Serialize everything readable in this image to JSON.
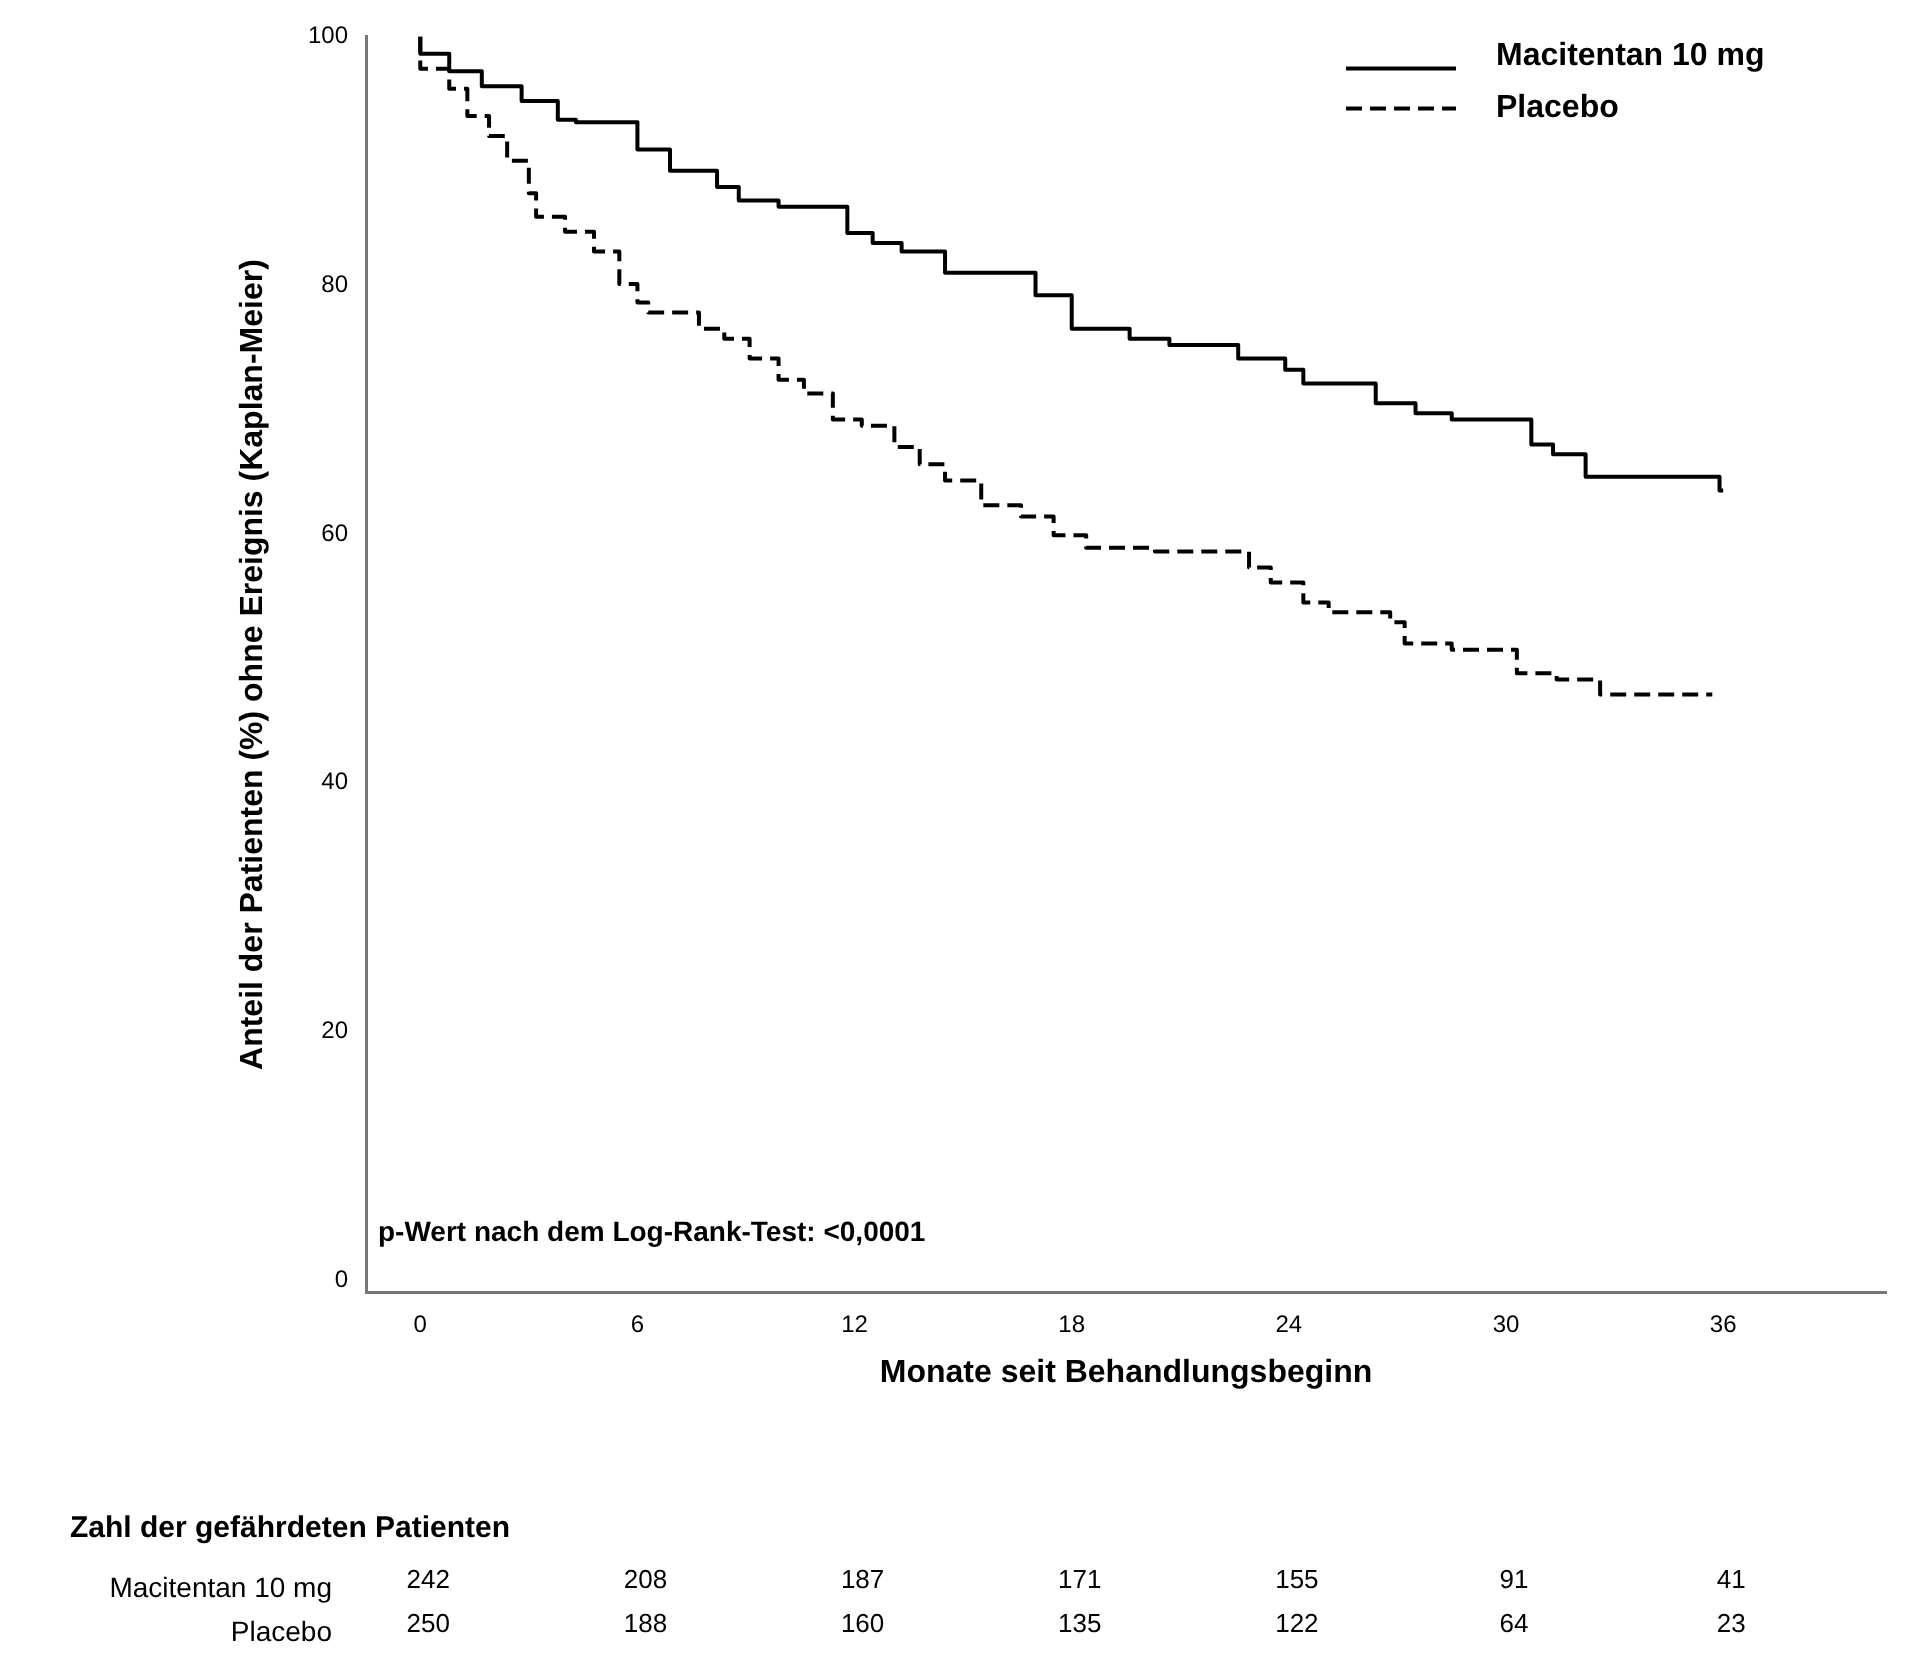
{
  "chart_data": {
    "type": "step",
    "ylabel": "Anteil der Patienten (%) ohne Ereignis (Kaplan-Meier)",
    "xlabel": "Monate seit Behandlungsbeginn",
    "xlim": [
      -1.5,
      40.5
    ],
    "xticks": [
      0,
      6,
      12,
      18,
      24,
      30,
      36
    ],
    "ylim": [
      -1,
      100
    ],
    "yticks": [
      0,
      20,
      40,
      60,
      80,
      100
    ],
    "grid": false,
    "legend": "top right",
    "series": [
      {
        "name": "Macitentan 10 mg",
        "color": "#000000",
        "line_style": "solid",
        "x": [
          0,
          0.8,
          1.7,
          2.8,
          3.8,
          4.3,
          6.0,
          6.9,
          8.2,
          8.8,
          9.9,
          11.8,
          12.5,
          13.3,
          14.5,
          17.0,
          18.0,
          19.6,
          20.7,
          22.6,
          23.9,
          24.4,
          26.4,
          27.5,
          28.5,
          30.7,
          31.3,
          32.2,
          33.1,
          35.9,
          36
        ],
        "values": [
          100,
          98.6,
          97.2,
          96,
          94.8,
          93.3,
          93.1,
          90.9,
          89.2,
          87.9,
          86.8,
          86.3,
          84.2,
          83.4,
          82.7,
          81,
          79.2,
          76.5,
          75.7,
          75.2,
          74.1,
          73.2,
          72.1,
          70.5,
          69.7,
          69.2,
          67.2,
          66.4,
          64.6,
          64.6,
          63.5
        ]
      },
      {
        "name": "Placebo",
        "color": "#000000",
        "line_style": "dashed",
        "x": [
          0,
          0.8,
          1.3,
          1.9,
          2.4,
          3,
          3.2,
          4,
          4.8,
          5.5,
          6,
          6.3,
          7.7,
          8.4,
          9.1,
          9.9,
          10.6,
          11.4,
          12.2,
          13.1,
          13.8,
          14.5,
          15.5,
          16.6,
          17.5,
          18.4,
          20.3,
          22.9,
          23.5,
          24.4,
          25.1,
          26.8,
          27.2,
          28.5,
          30.3,
          31.4,
          32.6,
          33.1,
          35.7
        ],
        "values": [
          100,
          97.4,
          95.8,
          93.6,
          92,
          90,
          87.4,
          85.5,
          84.3,
          82.7,
          80.1,
          78.6,
          77.8,
          76.5,
          75.7,
          74.1,
          72.4,
          71.3,
          69.2,
          68.7,
          67,
          65.6,
          64.3,
          62.3,
          61.4,
          59.9,
          58.9,
          58.6,
          57.3,
          56.1,
          54.5,
          53.7,
          52.9,
          51.2,
          50.7,
          48.8,
          48.3,
          47.1,
          47.1
        ]
      }
    ],
    "annotations": [
      "p-Wert nach dem Log-Rank-Test: <0,0001",
      "Zahl der gefährdeten Patienten",
      "Macitentan 10 mg",
      "242",
      "208",
      "187",
      "171",
      "155",
      "91",
      "41",
      "Placebo",
      "250",
      "188",
      "160",
      "135",
      "122",
      "64",
      "23"
    ]
  }
}
